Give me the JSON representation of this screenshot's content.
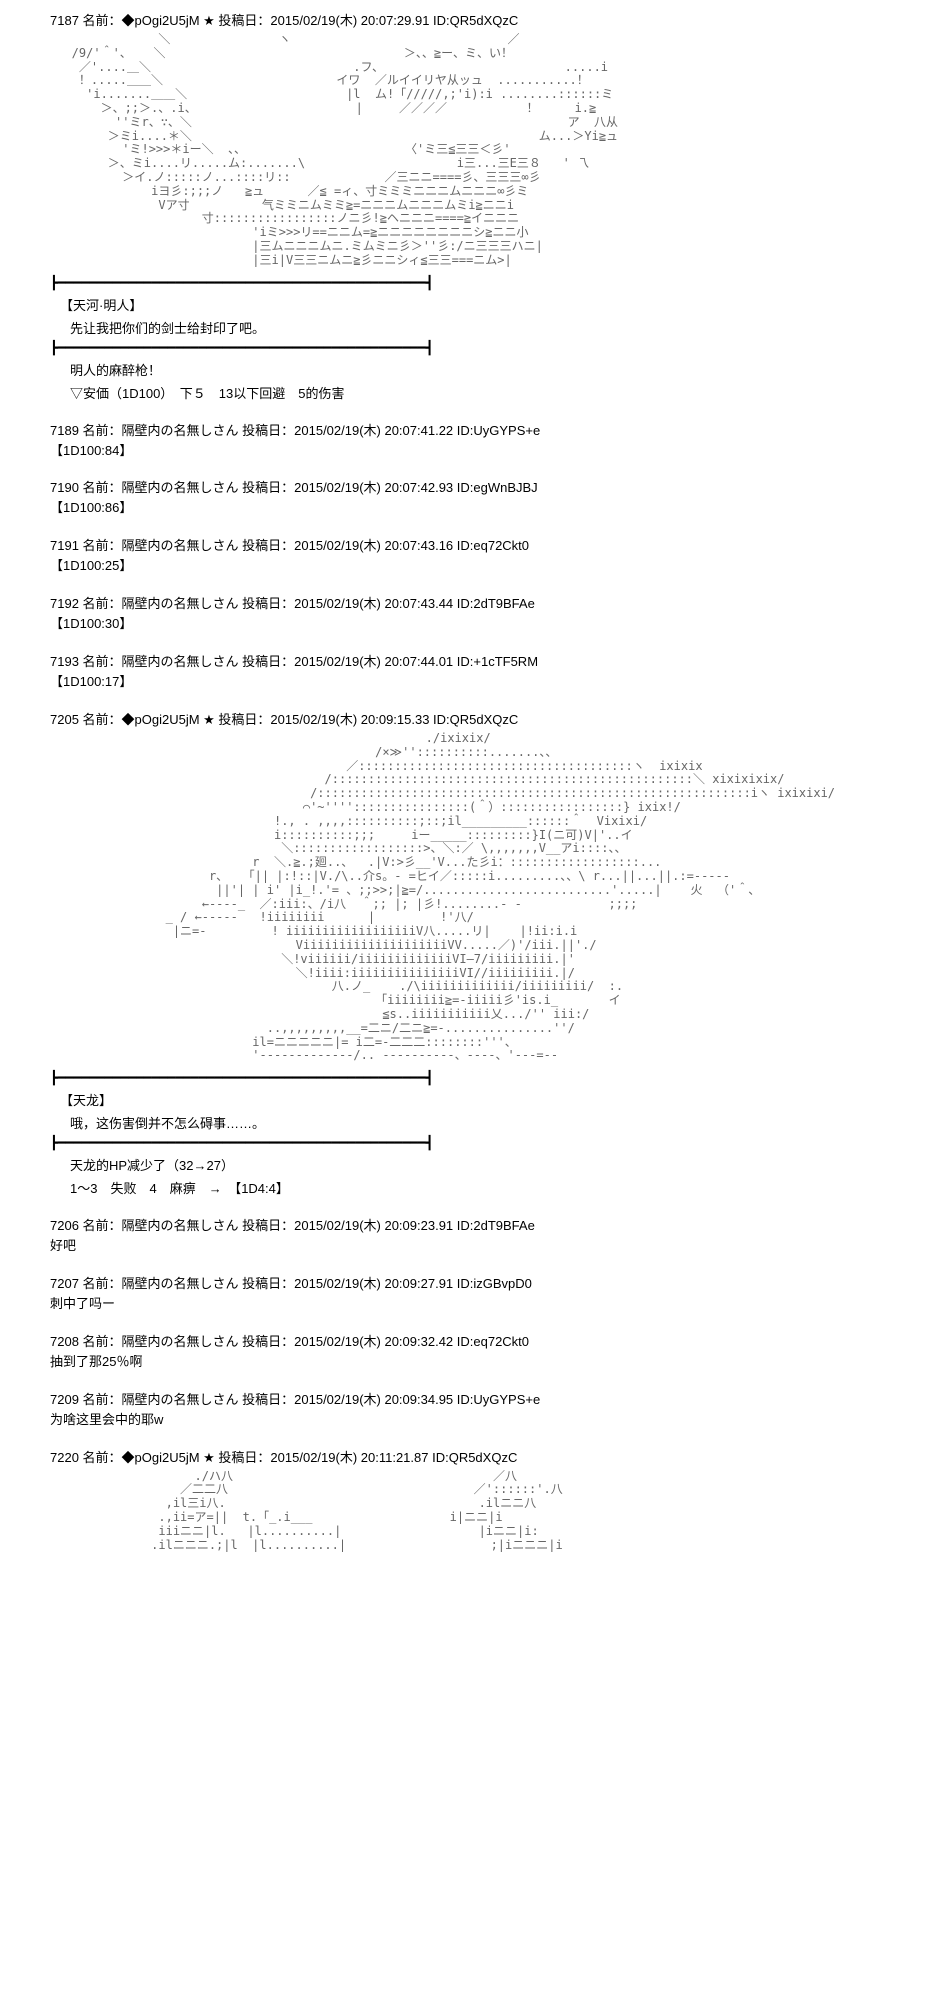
{
  "posts": [
    {
      "number": "7187",
      "name": "◆pOgi2U5jM ★",
      "date": "2015/02/19(木) 20:07:29.91",
      "id": "QR5dXQzC",
      "type": "story",
      "ascii_art": "               ＼               ヽ                              ／\n   /9/'＾'、   ＼                                 ＞、、≧ー、ミ、い！\n    ／'....＿＼                            .フ、                         .....i\n    ！.....＿＿＼                        イワ  ／ルイイリヤ从ッュ  ...........！\n     'i.......＿＿＼                      |l  ム!「/////,;'i):i ........::::::ミ\n       ＞、;;＞.、.i、                      |     ／／／／           ！     i.≧\n         ''ミr、∵、＼                                                    ア  八从\n        ＞ミi....＊＼                                                ム...＞Yi≧ュ\n          'ミ!>>>＊iー＼  、、                      〈'ミ三≦三三＜彡'\n        ＞、ミi....リ.....ム:.......\\                     i三...三E三８   ' 乁\n          ＞イ.ノ:::::ノ...::::リ::             ／三ニニ====彡、三三三∞彡\n              iヨ彡:;;;ノ   ≧ュ      ／≦ =ィ、寸ミミミニニニムニニニ∞彡ミ\n               Vア寸          气ミミニムミミ≧=ニニニムニニニムミi≧ニニi\n                     寸:::::::::::::::::ノニ彡!≧ヘニニニ====≧イニニニ\n                            'iミ>>>リ==ニニム=≧ニニニニニニニニシ≧ニニ小\n                            |三ムニニニムニ.ミムミニ彡＞''彡:/ニ三三三ハニ|\n                            |三i|V三三ニムニ≧彡ニニシィ≦三三===ニム>|",
      "story_parts": [
        {
          "speaker": "【天河·明人】",
          "line": "先让我把你们的剑士给封印了吧。"
        },
        {
          "speaker": "",
          "line": "明人的麻醉枪！"
        },
        {
          "speaker": "",
          "line": "▽安価（1D100）　下５　13以下回避　5的伤害"
        }
      ]
    },
    {
      "number": "7189",
      "name": "隔壁内の名無しさん",
      "date": "2015/02/19(木) 20:07:41.22",
      "id": "UyGYPS+e",
      "type": "reply",
      "body": "【1D100:84】"
    },
    {
      "number": "7190",
      "name": "隔壁内の名無しさん",
      "date": "2015/02/19(木) 20:07:42.93",
      "id": "egWnBJBJ",
      "type": "reply",
      "body": "【1D100:86】"
    },
    {
      "number": "7191",
      "name": "隔壁内の名無しさん",
      "date": "2015/02/19(木) 20:07:43.16",
      "id": "eq72Ckt0",
      "type": "reply",
      "body": "【1D100:25】"
    },
    {
      "number": "7192",
      "name": "隔壁内の名無しさん",
      "date": "2015/02/19(木) 20:07:43.44",
      "id": "2dT9BFAe",
      "type": "reply",
      "body": "【1D100:30】"
    },
    {
      "number": "7193",
      "name": "隔壁内の名無しさん",
      "date": "2015/02/19(木) 20:07:44.01",
      "id": "+1cTF5RM",
      "type": "reply",
      "body": "【1D100:17】"
    },
    {
      "number": "7205",
      "name": "◆pOgi2U5jM ★",
      "date": "2015/02/19(木) 20:09:15.33",
      "id": "QR5dXQzC",
      "type": "story",
      "ascii_art": "                                                    ./ixixix/\n                                             /×≫''::::::::::.......、、\n                                         ／::::::::::::::::::::::::::::::::::::::ヽ  ixixix\n                                      /::::::::::::::::::::::::::::::::::::::::::::::::::＼ xixixixix/\n                                    /::::::::::::::::::::::::::::::::::::::::::::::::::::::::::::iヽ ixixixi/\n                                   ⌒'~''''::::::::::::::::(＾）:::::::::::::::::} ixix!/\n                               !., . ,,,,::::::::::;::;il_________::::::＾  Vixixi/\n                               i::::::::::;;;     iー_____:::::::::}I(ニ可)V|'..イ\n                                ＼::::::::::::::::::>、＼:／ \\,,,,,,,V__アi::::、、\n                            r  ＼.≧.;廻..、  .|V:>彡__'V...た彡i：::::::::::::::::::...\n                      r、  「|| |:!::|V./\\..介s。- =ヒイ／:::::i.........、、\\ r...||...||.:=-----\n                       ||'| | i' |i_!.'= 、;;>>;|≧=/..........................'.....|    火  （'＾、\n                     ←----_  ／:iii:、/i八  ＾;; |; |彡!........- -            ;;;;\n                _ / ←-----   !iiiiiiii      |         !'八/\n                 |ニ=-         ! iiiiiiiiiiiiiiiiiiV八.....リ|    |!ii:i.i\n                                  ViiiiiiiiiiiiiiiiiiiiVV.....／)'/iii.||'./\n                                ＼!viiiiii/iiiiiiiiiiiiiVI—7/iiiiiiiii.|'\n                                  ＼!iiii:iiiiiiiiiiiiiiiVI//iiiiiiiii.|/\n                                       八.ノ_    ./\\iiiiiiiiiiiii/iiiiiiiii/  :.\n                                             「iiiiiiii≧=-iiiii彡'is.i_       イ\n                                              ≦s..iiiiiiiiiii乂.../'' iii:/\n                              ..,,,,,,,,,__=二ニ/二ニ≧=-...............''/\n                            il=ニニニニニ|= i二=-二二二::::::::'''、\n                            '-------------/.. ----------、----、'---=--",
      "story_parts": [
        {
          "speaker": "【天龙】",
          "line": "哦，这伤害倒并不怎么碍事……。"
        },
        {
          "speaker": "",
          "line": "天龙的HP减少了（32→27）"
        },
        {
          "speaker": "",
          "line": "1～3　失败　4　麻痹　→　【1D4:4】"
        }
      ]
    },
    {
      "number": "7206",
      "name": "隔壁内の名無しさん",
      "date": "2015/02/19(木) 20:09:23.91",
      "id": "2dT9BFAe",
      "type": "reply",
      "body": "好吧"
    },
    {
      "number": "7207",
      "name": "隔壁内の名無しさん",
      "date": "2015/02/19(木) 20:09:27.91",
      "id": "izGBvpD0",
      "type": "reply",
      "body": "刺中了吗ー"
    },
    {
      "number": "7208",
      "name": "隔壁内の名無しさん",
      "date": "2015/02/19(木) 20:09:32.42",
      "id": "eq72Ckt0",
      "type": "reply",
      "body": "抽到了那25％啊"
    },
    {
      "number": "7209",
      "name": "隔壁内の名無しさん",
      "date": "2015/02/19(木) 20:09:34.95",
      "id": "UyGYPS+e",
      "type": "reply",
      "body": "为啥这里会中的耶w"
    },
    {
      "number": "7220",
      "name": "◆pOgi2U5jM ★",
      "date": "2015/02/19(木) 20:11:21.87",
      "id": "QR5dXQzC",
      "type": "story_partial",
      "ascii_art": "                    ./ハ八                                    ／八\n                  ／二二八                                  ／'::::::'.八\n                ,il三i八.                                   .ilニニ八\n               .,ii=ア=||  t.「_.i___                   i|ニニ|i\n               iiiニニ|l.   |l..........|                   |iニニ|i:\n              .ilニニニ.;|l  |l..........|                    ;|iニニニ|i",
      "story_parts": []
    }
  ],
  "labels": {
    "name_prefix": "名前：",
    "date_prefix": "投稿日：",
    "id_prefix": "ID:"
  },
  "divider": "┣━━━━━━━━━━━━━━━━━━━━━━━━━━━━━━━━━━━━━━━━━━━━━━━┫"
}
